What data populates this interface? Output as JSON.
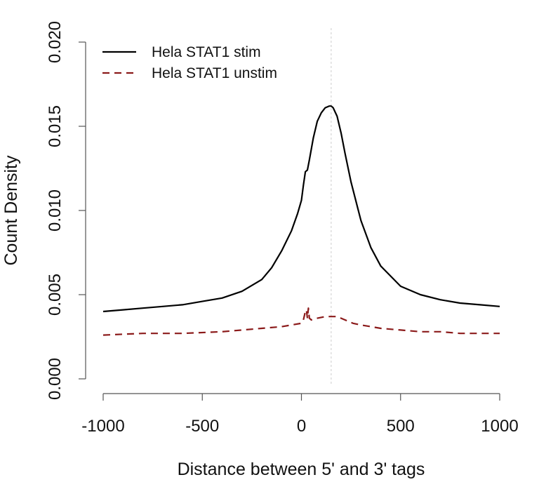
{
  "chart_data": {
    "type": "line",
    "xlabel": "Distance between 5' and 3' tags",
    "ylabel": "Count Density",
    "xlim": [
      -1000,
      1000
    ],
    "ylim": [
      0,
      0.02
    ],
    "x_ticks": [
      -1000,
      -500,
      0,
      500,
      1000
    ],
    "x_tick_labels": [
      "-1000",
      "-500",
      "0",
      "500",
      "1000"
    ],
    "y_ticks": [
      0,
      0.005,
      0.01,
      0.015,
      0.02
    ],
    "y_tick_labels": [
      "0.000",
      "0.005",
      "0.010",
      "0.015",
      "0.020"
    ],
    "reference_line_x": 150,
    "grid": false,
    "legend_position": "top-left",
    "series": [
      {
        "name": "Hela STAT1 stim",
        "color": "#000000",
        "style": "solid",
        "x": [
          -1000,
          -900,
          -800,
          -700,
          -600,
          -500,
          -400,
          -300,
          -200,
          -150,
          -100,
          -50,
          -20,
          0,
          10,
          20,
          30,
          40,
          60,
          80,
          100,
          120,
          140,
          150,
          160,
          180,
          200,
          220,
          250,
          300,
          350,
          400,
          500,
          600,
          700,
          800,
          900,
          1000
        ],
        "y": [
          0.004,
          0.0041,
          0.0042,
          0.0043,
          0.0044,
          0.0046,
          0.0048,
          0.0052,
          0.0059,
          0.0066,
          0.0076,
          0.0088,
          0.0098,
          0.0106,
          0.0115,
          0.0123,
          0.0124,
          0.013,
          0.0143,
          0.0153,
          0.0158,
          0.0161,
          0.0162,
          0.0162,
          0.0161,
          0.0156,
          0.0146,
          0.0134,
          0.0117,
          0.0094,
          0.0078,
          0.0067,
          0.0055,
          0.005,
          0.0047,
          0.0045,
          0.0044,
          0.0043
        ]
      },
      {
        "name": "Hela STAT1 unstim",
        "color": "#8b1a1a",
        "style": "dashed",
        "x": [
          -1000,
          -800,
          -600,
          -400,
          -300,
          -200,
          -100,
          -50,
          0,
          10,
          20,
          25,
          30,
          35,
          40,
          50,
          80,
          120,
          150,
          180,
          220,
          260,
          300,
          400,
          500,
          600,
          700,
          800,
          900,
          1000
        ],
        "y": [
          0.0026,
          0.0027,
          0.0027,
          0.0028,
          0.0029,
          0.003,
          0.0031,
          0.0032,
          0.0033,
          0.0035,
          0.004,
          0.0041,
          0.0036,
          0.0042,
          0.0036,
          0.0035,
          0.0036,
          0.0037,
          0.0037,
          0.0037,
          0.0035,
          0.0033,
          0.0032,
          0.003,
          0.0029,
          0.0028,
          0.0028,
          0.0027,
          0.0027,
          0.0027
        ]
      }
    ]
  }
}
